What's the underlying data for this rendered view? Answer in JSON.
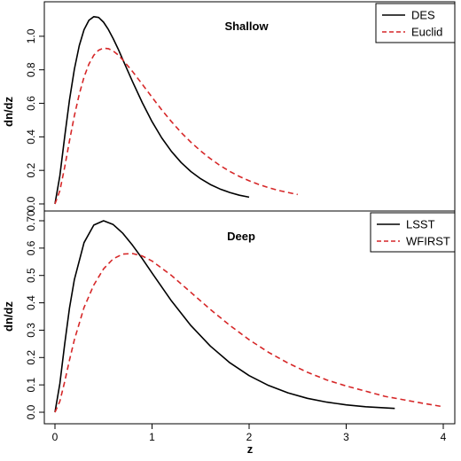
{
  "chart_data": [
    {
      "type": "line",
      "title": "Shallow",
      "xlabel": "",
      "ylabel": "dn/dz",
      "xlim": [
        0,
        4
      ],
      "ylim": [
        0,
        1.1
      ],
      "yticks": [
        "0.0",
        "0.2",
        "0.4",
        "0.6",
        "0.8",
        "1.0"
      ],
      "legend_position": "top-right",
      "grid": false,
      "series": [
        {
          "name": "DES",
          "color": "#000000",
          "style": "solid",
          "x": [
            0.0,
            0.05,
            0.1,
            0.15,
            0.2,
            0.25,
            0.3,
            0.35,
            0.4,
            0.45,
            0.5,
            0.55,
            0.6,
            0.65,
            0.7,
            0.8,
            0.9,
            1.0,
            1.1,
            1.2,
            1.3,
            1.4,
            1.5,
            1.6,
            1.7,
            1.8,
            1.9,
            2.0
          ],
          "y": [
            0.0,
            0.167,
            0.402,
            0.621,
            0.804,
            0.944,
            1.039,
            1.095,
            1.117,
            1.112,
            1.084,
            1.041,
            0.986,
            0.925,
            0.86,
            0.728,
            0.603,
            0.491,
            0.394,
            0.313,
            0.247,
            0.193,
            0.15,
            0.116,
            0.089,
            0.068,
            0.052,
            0.04
          ]
        },
        {
          "name": "Euclid",
          "color": "#d62728",
          "style": "dashed",
          "x": [
            0.0,
            0.05,
            0.1,
            0.15,
            0.2,
            0.25,
            0.3,
            0.35,
            0.4,
            0.45,
            0.5,
            0.55,
            0.6,
            0.65,
            0.7,
            0.8,
            0.9,
            1.0,
            1.1,
            1.2,
            1.3,
            1.4,
            1.5,
            1.6,
            1.7,
            1.8,
            1.9,
            2.0,
            2.1,
            2.2,
            2.3,
            2.4,
            2.5
          ],
          "y": [
            0.0,
            0.079,
            0.22,
            0.377,
            0.526,
            0.654,
            0.757,
            0.834,
            0.887,
            0.917,
            0.929,
            0.926,
            0.912,
            0.889,
            0.859,
            0.789,
            0.713,
            0.636,
            0.561,
            0.491,
            0.426,
            0.368,
            0.316,
            0.27,
            0.229,
            0.194,
            0.164,
            0.138,
            0.116,
            0.097,
            0.081,
            0.068,
            0.056
          ]
        }
      ]
    },
    {
      "type": "line",
      "title": "Deep",
      "xlabel": "z",
      "ylabel": "dn/dz",
      "xlim": [
        0,
        4
      ],
      "ylim": [
        0,
        0.7
      ],
      "xticks": [
        "0",
        "1",
        "2",
        "3",
        "4"
      ],
      "yticks": [
        "0.0",
        "0.1",
        "0.2",
        "0.3",
        "0.4",
        "0.5",
        "0.6",
        "0.70"
      ],
      "legend_position": "top-right",
      "grid": false,
      "series": [
        {
          "name": "LSST",
          "color": "#000000",
          "style": "solid",
          "x": [
            0.0,
            0.05,
            0.1,
            0.15,
            0.2,
            0.3,
            0.4,
            0.5,
            0.6,
            0.7,
            0.8,
            0.9,
            1.0,
            1.2,
            1.4,
            1.6,
            1.8,
            2.0,
            2.2,
            2.4,
            2.6,
            2.8,
            3.0,
            3.2,
            3.5
          ],
          "y": [
            0.0,
            0.104,
            0.25,
            0.381,
            0.485,
            0.62,
            0.684,
            0.7,
            0.686,
            0.654,
            0.61,
            0.561,
            0.509,
            0.407,
            0.317,
            0.242,
            0.181,
            0.134,
            0.098,
            0.071,
            0.051,
            0.037,
            0.027,
            0.02,
            0.014
          ]
        },
        {
          "name": "WFIRST",
          "color": "#d62728",
          "style": "dashed",
          "x": [
            0.0,
            0.05,
            0.1,
            0.15,
            0.2,
            0.3,
            0.4,
            0.5,
            0.6,
            0.7,
            0.8,
            0.9,
            1.0,
            1.2,
            1.4,
            1.6,
            1.8,
            2.0,
            2.2,
            2.4,
            2.6,
            2.8,
            3.0,
            3.2,
            3.4,
            3.6,
            3.8,
            4.0
          ],
          "y": [
            0.0,
            0.04,
            0.112,
            0.191,
            0.265,
            0.383,
            0.465,
            0.524,
            0.561,
            0.578,
            0.58,
            0.571,
            0.553,
            0.5,
            0.438,
            0.376,
            0.318,
            0.265,
            0.219,
            0.18,
            0.146,
            0.118,
            0.096,
            0.077,
            0.058,
            0.045,
            0.032,
            0.02
          ]
        }
      ]
    }
  ]
}
